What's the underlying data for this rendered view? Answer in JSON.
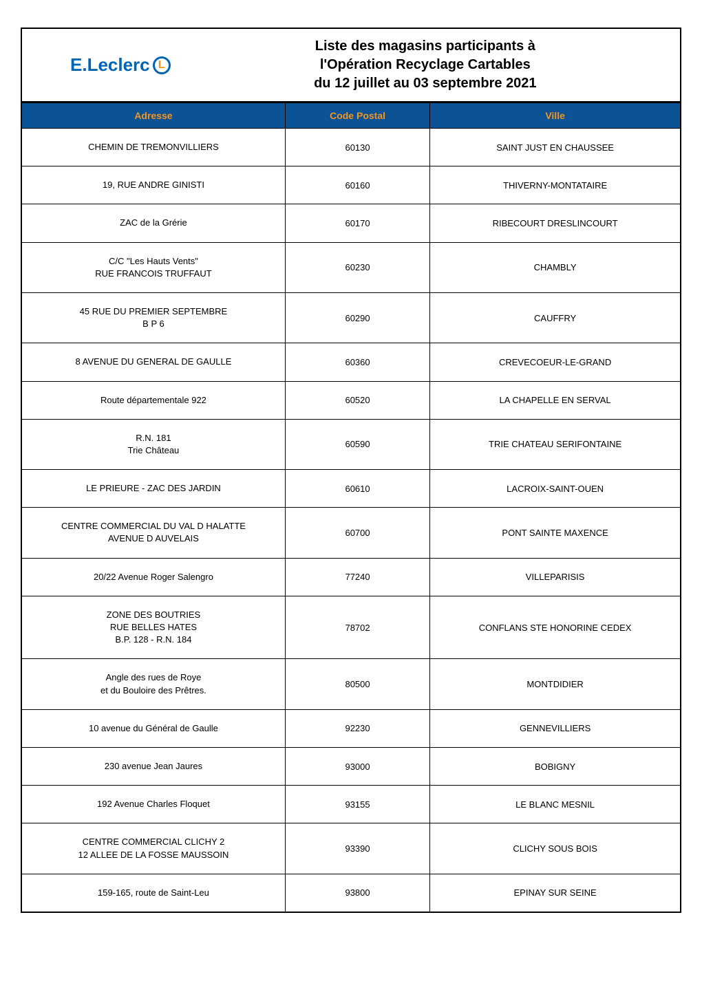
{
  "logo": {
    "brand": "E.Leclerc",
    "icon_letter": "L"
  },
  "header": {
    "title_line1": "Liste des magasins participants à",
    "title_line2": "l'Opération Recyclage Cartables",
    "title_line3": "du 12 juillet au 03 septembre 2021"
  },
  "columns": {
    "adresse": "Adresse",
    "code_postal": "Code Postal",
    "ville": "Ville"
  },
  "rows": [
    {
      "adresse": "CHEMIN DE TREMONVILLIERS",
      "cp": "60130",
      "ville": "SAINT JUST EN CHAUSSEE"
    },
    {
      "adresse": "19, RUE ANDRE GINISTI",
      "cp": "60160",
      "ville": "THIVERNY-MONTATAIRE"
    },
    {
      "adresse": "ZAC de la Grérie",
      "cp": "60170",
      "ville": "RIBECOURT DRESLINCOURT"
    },
    {
      "adresse": "C/C \"Les Hauts Vents\"\nRUE FRANCOIS TRUFFAUT",
      "cp": "60230",
      "ville": "CHAMBLY"
    },
    {
      "adresse": "45 RUE DU PREMIER SEPTEMBRE\nB P 6",
      "cp": "60290",
      "ville": "CAUFFRY"
    },
    {
      "adresse": "8 AVENUE DU GENERAL DE GAULLE",
      "cp": "60360",
      "ville": "CREVECOEUR-LE-GRAND"
    },
    {
      "adresse": "Route départementale 922",
      "cp": "60520",
      "ville": "LA CHAPELLE EN SERVAL"
    },
    {
      "adresse": "R.N. 181\nTrie Château",
      "cp": "60590",
      "ville": "TRIE CHATEAU SERIFONTAINE"
    },
    {
      "adresse": "LE PRIEURE - ZAC DES JARDIN",
      "cp": "60610",
      "ville": "LACROIX-SAINT-OUEN"
    },
    {
      "adresse": "CENTRE COMMERCIAL DU VAL D HALATTE\nAVENUE D AUVELAIS",
      "cp": "60700",
      "ville": "PONT SAINTE MAXENCE"
    },
    {
      "adresse": "20/22 Avenue Roger Salengro",
      "cp": "77240",
      "ville": "VILLEPARISIS"
    },
    {
      "adresse": "ZONE DES BOUTRIES\nRUE BELLES HATES\nB.P. 128 - R.N. 184",
      "cp": "78702",
      "ville": "CONFLANS STE HONORINE CEDEX"
    },
    {
      "adresse": "Angle des rues de Roye\net du Bouloire des Prêtres.",
      "cp": "80500",
      "ville": "MONTDIDIER"
    },
    {
      "adresse": "10 avenue du Général de Gaulle",
      "cp": "92230",
      "ville": "GENNEVILLIERS"
    },
    {
      "adresse": "230 avenue Jean Jaures",
      "cp": "93000",
      "ville": "BOBIGNY"
    },
    {
      "adresse": "192 Avenue Charles Floquet",
      "cp": "93155",
      "ville": "LE BLANC MESNIL"
    },
    {
      "adresse": "CENTRE COMMERCIAL CLICHY 2\n12 ALLEE DE LA FOSSE MAUSSOIN",
      "cp": "93390",
      "ville": "CLICHY SOUS BOIS"
    },
    {
      "adresse": "159-165, route de Saint-Leu",
      "cp": "93800",
      "ville": "EPINAY SUR SEINE"
    }
  ],
  "styling": {
    "header_bg": "#0b5394",
    "header_text": "#f7941e",
    "border_color": "#000000",
    "logo_blue": "#0066b3",
    "logo_orange": "#f7941e",
    "body_bg": "#ffffff",
    "body_font_size": 13,
    "title_font_size": 20,
    "logo_font_size": 26,
    "col_widths": {
      "adresse": "40%",
      "cp": "22%",
      "ville": "38%"
    }
  }
}
